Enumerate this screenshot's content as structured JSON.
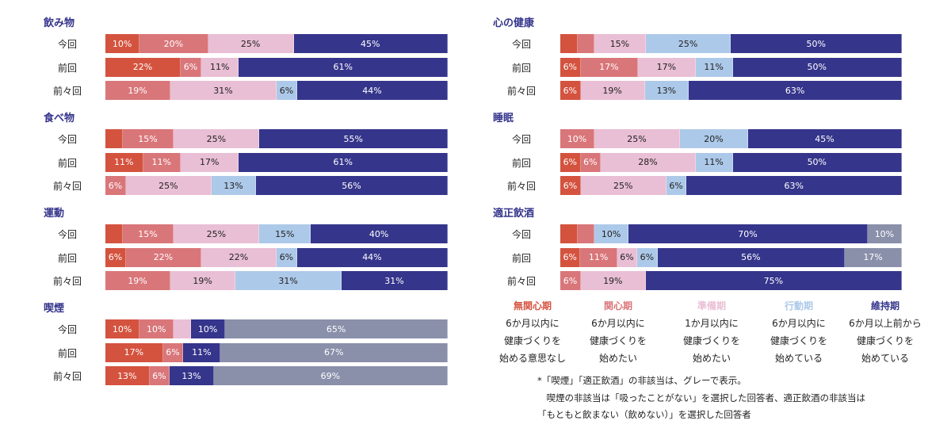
{
  "chart_data": {
    "type": "bar",
    "orientation": "horizontal-stacked-100",
    "unit": "%",
    "stages": [
      {
        "name": "無関心期",
        "color": "#d4533f",
        "text_color": "#ffffff",
        "desc": [
          "6か月以内に",
          "健康づくりを",
          "始める意思なし"
        ]
      },
      {
        "name": "関心期",
        "color": "#d9767a",
        "text_color": "#ffffff",
        "desc": [
          "6か月以内に",
          "健康づくりを",
          "始めたい"
        ]
      },
      {
        "name": "準備期",
        "color": "#e9bfd5",
        "text_color": "#222222",
        "desc": [
          "1か月以内に",
          "健康づくりを",
          "始めたい"
        ]
      },
      {
        "name": "行動期",
        "color": "#adc9e9",
        "text_color": "#222222",
        "desc": [
          "6か月以内に",
          "健康づくりを",
          "始めている"
        ]
      },
      {
        "name": "維持期",
        "color": "#35358c",
        "text_color": "#ffffff",
        "desc": [
          "6か月以上前から",
          "健康づくりを",
          "始めている"
        ]
      },
      {
        "name": "非該当",
        "color": "#8a90aa",
        "text_color": "#ffffff"
      }
    ],
    "label_min": 6,
    "panels": [
      {
        "title": "飲み物",
        "rows": [
          {
            "label": "今回",
            "values": [
              10,
              20,
              25,
              0,
              45,
              0
            ]
          },
          {
            "label": "前回",
            "values": [
              22,
              6,
              11,
              0,
              61,
              0
            ]
          },
          {
            "label": "前々回",
            "values": [
              0,
              19,
              31,
              6,
              44,
              0
            ]
          }
        ]
      },
      {
        "title": "食べ物",
        "rows": [
          {
            "label": "今回",
            "values": [
              5,
              15,
              25,
              0,
              55,
              0
            ]
          },
          {
            "label": "前回",
            "values": [
              11,
              11,
              17,
              0,
              61,
              0
            ]
          },
          {
            "label": "前々回",
            "values": [
              0,
              6,
              25,
              13,
              56,
              0
            ]
          }
        ]
      },
      {
        "title": "運動",
        "rows": [
          {
            "label": "今回",
            "values": [
              5,
              15,
              25,
              15,
              40,
              0
            ]
          },
          {
            "label": "前回",
            "values": [
              6,
              22,
              22,
              6,
              44,
              0
            ]
          },
          {
            "label": "前々回",
            "values": [
              0,
              19,
              19,
              31,
              31,
              0
            ]
          }
        ]
      },
      {
        "title": "喫煙",
        "rows": [
          {
            "label": "今回",
            "values": [
              10,
              10,
              5,
              0,
              10,
              65
            ]
          },
          {
            "label": "前回",
            "values": [
              17,
              6,
              0,
              0,
              11,
              67
            ]
          },
          {
            "label": "前々回",
            "values": [
              13,
              6,
              0,
              0,
              13,
              69
            ]
          }
        ]
      },
      {
        "title": "心の健康",
        "rows": [
          {
            "label": "今回",
            "values": [
              5,
              5,
              15,
              25,
              50,
              0
            ]
          },
          {
            "label": "前回",
            "values": [
              6,
              17,
              17,
              11,
              50,
              0
            ]
          },
          {
            "label": "前々回",
            "values": [
              6,
              0,
              19,
              13,
              63,
              0
            ]
          }
        ]
      },
      {
        "title": "睡眠",
        "rows": [
          {
            "label": "今回",
            "values": [
              0,
              10,
              25,
              20,
              45,
              0
            ]
          },
          {
            "label": "前回",
            "values": [
              6,
              6,
              28,
              11,
              50,
              0
            ]
          },
          {
            "label": "前々回",
            "values": [
              6,
              0,
              25,
              6,
              63,
              0
            ]
          }
        ]
      },
      {
        "title": "適正飲酒",
        "rows": [
          {
            "label": "今回",
            "values": [
              5,
              5,
              0,
              10,
              70,
              10
            ]
          },
          {
            "label": "前回",
            "values": [
              6,
              11,
              6,
              6,
              56,
              17
            ]
          },
          {
            "label": "前々回",
            "values": [
              0,
              6,
              19,
              0,
              75,
              0
            ]
          }
        ]
      }
    ]
  },
  "note": [
    "*「喫煙」「適正飲酒」の非該当は、グレーで表示。",
    "　喫煙の非該当は「吸ったことがない」を選択した回答者、適正飲酒の非該当は",
    "「もともと飲まない（飲めない）」を選択した回答者"
  ]
}
